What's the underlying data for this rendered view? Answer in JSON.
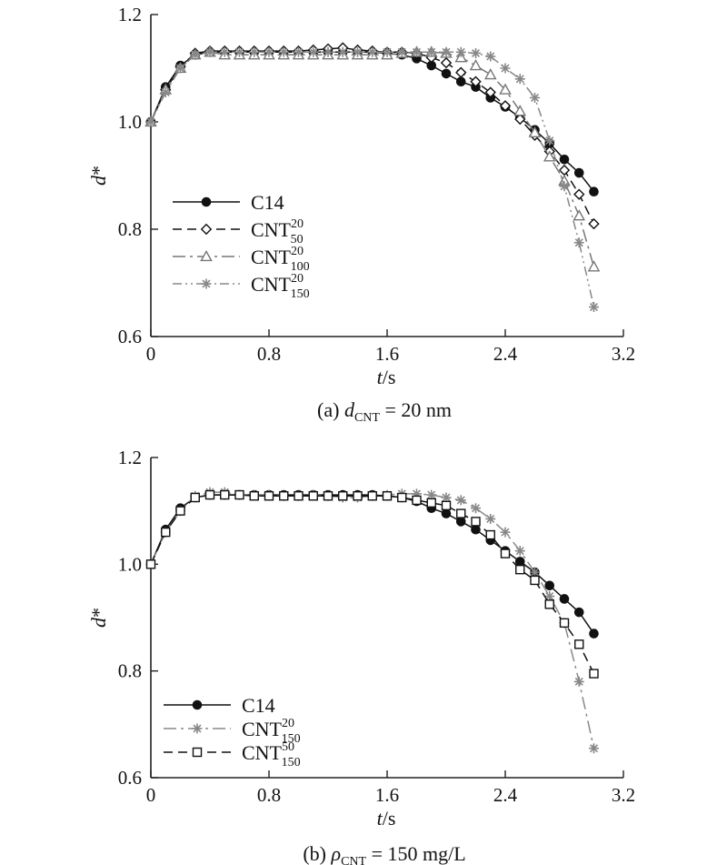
{
  "chart_data": [
    {
      "type": "line",
      "caption": {
        "prefix": "(a) ",
        "var": "d",
        "sub": "CNT",
        "suffix": " = 20 nm"
      },
      "xlabel": {
        "var": "t",
        "unit": "/s"
      },
      "ylabel": {
        "var": "d",
        "sup": "*"
      },
      "xlim": [
        0,
        3.2
      ],
      "ylim": [
        0.6,
        1.2
      ],
      "xticks": [
        "0",
        "0.8",
        "1.6",
        "2.4",
        "3.2"
      ],
      "yticks": [
        "0.6",
        "0.8",
        "1.0",
        "1.2"
      ],
      "legend_position": "lower-left",
      "series": [
        {
          "name": "C14",
          "sup": "",
          "sub": "",
          "color": "#111111",
          "dash": "",
          "marker": "filled-circle",
          "x": [
            0,
            0.1,
            0.2,
            0.3,
            0.4,
            0.5,
            0.6,
            0.7,
            0.8,
            0.9,
            1.0,
            1.1,
            1.2,
            1.3,
            1.4,
            1.5,
            1.6,
            1.7,
            1.8,
            1.9,
            2.0,
            2.1,
            2.2,
            2.3,
            2.4,
            2.5,
            2.6,
            2.7,
            2.8,
            2.9,
            3.0
          ],
          "y": [
            1.0,
            1.065,
            1.105,
            1.125,
            1.13,
            1.13,
            1.13,
            1.13,
            1.13,
            1.13,
            1.13,
            1.13,
            1.13,
            1.13,
            1.13,
            1.13,
            1.128,
            1.125,
            1.118,
            1.105,
            1.09,
            1.075,
            1.065,
            1.045,
            1.028,
            1.008,
            0.985,
            0.96,
            0.93,
            0.905,
            0.87
          ]
        },
        {
          "name": "CNT",
          "sup": "20",
          "sub": "50",
          "color": "#111111",
          "dash": "10,6",
          "marker": "open-diamond",
          "x": [
            0,
            0.1,
            0.2,
            0.3,
            0.4,
            0.5,
            0.6,
            0.7,
            0.8,
            0.9,
            1.0,
            1.1,
            1.2,
            1.3,
            1.4,
            1.5,
            1.6,
            1.7,
            1.8,
            1.9,
            2.0,
            2.1,
            2.2,
            2.3,
            2.4,
            2.5,
            2.6,
            2.7,
            2.8,
            2.9,
            3.0
          ],
          "y": [
            1.0,
            1.06,
            1.103,
            1.128,
            1.132,
            1.132,
            1.132,
            1.132,
            1.132,
            1.132,
            1.132,
            1.134,
            1.136,
            1.138,
            1.134,
            1.132,
            1.13,
            1.13,
            1.128,
            1.12,
            1.11,
            1.092,
            1.075,
            1.055,
            1.03,
            1.005,
            0.975,
            0.945,
            0.91,
            0.865,
            0.81
          ]
        },
        {
          "name": "CNT",
          "sup": "20",
          "sub": "100",
          "color": "#777777",
          "dash": "14,5,3,5",
          "marker": "open-triangle",
          "x": [
            0,
            0.1,
            0.2,
            0.3,
            0.4,
            0.5,
            0.6,
            0.7,
            0.8,
            0.9,
            1.0,
            1.1,
            1.2,
            1.3,
            1.4,
            1.5,
            1.6,
            1.7,
            1.8,
            1.9,
            2.0,
            2.1,
            2.2,
            2.3,
            2.4,
            2.5,
            2.6,
            2.7,
            2.8,
            2.9,
            3.0
          ],
          "y": [
            1.0,
            1.06,
            1.1,
            1.125,
            1.13,
            1.125,
            1.125,
            1.125,
            1.125,
            1.125,
            1.125,
            1.125,
            1.125,
            1.125,
            1.125,
            1.125,
            1.125,
            1.128,
            1.13,
            1.13,
            1.128,
            1.12,
            1.105,
            1.088,
            1.06,
            1.02,
            0.98,
            0.935,
            0.89,
            0.825,
            0.73
          ]
        },
        {
          "name": "CNT",
          "sup": "20",
          "sub": "150",
          "color": "#888888",
          "dash": "10,4,2,4,2,4",
          "marker": "asterisk",
          "x": [
            0,
            0.1,
            0.2,
            0.3,
            0.4,
            0.5,
            0.6,
            0.7,
            0.8,
            0.9,
            1.0,
            1.1,
            1.2,
            1.3,
            1.4,
            1.5,
            1.6,
            1.7,
            1.8,
            1.9,
            2.0,
            2.1,
            2.2,
            2.3,
            2.4,
            2.5,
            2.6,
            2.7,
            2.8,
            2.9,
            3.0
          ],
          "y": [
            1.0,
            1.055,
            1.1,
            1.125,
            1.13,
            1.13,
            1.13,
            1.13,
            1.13,
            1.13,
            1.13,
            1.13,
            1.13,
            1.13,
            1.13,
            1.13,
            1.13,
            1.13,
            1.13,
            1.13,
            1.13,
            1.13,
            1.128,
            1.122,
            1.1,
            1.08,
            1.045,
            0.965,
            0.88,
            0.775,
            0.655
          ]
        }
      ]
    },
    {
      "type": "line",
      "caption": {
        "prefix": "(b) ",
        "var": "ρ",
        "sub": "CNT",
        "suffix": " = 150 mg/L"
      },
      "xlabel": {
        "var": "t",
        "unit": "/s"
      },
      "ylabel": {
        "var": "d",
        "sup": "*"
      },
      "xlim": [
        0,
        3.2
      ],
      "ylim": [
        0.6,
        1.2
      ],
      "xticks": [
        "0",
        "0.8",
        "1.6",
        "2.4",
        "3.2"
      ],
      "yticks": [
        "0.6",
        "0.8",
        "1.0",
        "1.2"
      ],
      "legend_position": "lower-left",
      "series": [
        {
          "name": "C14",
          "sup": "",
          "sub": "",
          "color": "#111111",
          "dash": "",
          "marker": "filled-circle",
          "x": [
            0,
            0.1,
            0.2,
            0.3,
            0.4,
            0.5,
            0.6,
            0.7,
            0.8,
            0.9,
            1.0,
            1.1,
            1.2,
            1.3,
            1.4,
            1.5,
            1.6,
            1.7,
            1.8,
            1.9,
            2.0,
            2.1,
            2.2,
            2.3,
            2.4,
            2.5,
            2.6,
            2.7,
            2.8,
            2.9,
            3.0
          ],
          "y": [
            1.0,
            1.065,
            1.105,
            1.125,
            1.13,
            1.13,
            1.13,
            1.13,
            1.13,
            1.13,
            1.13,
            1.13,
            1.13,
            1.13,
            1.13,
            1.13,
            1.128,
            1.125,
            1.118,
            1.105,
            1.095,
            1.08,
            1.065,
            1.045,
            1.025,
            1.005,
            0.985,
            0.96,
            0.935,
            0.91,
            0.87
          ]
        },
        {
          "name": "CNT",
          "sup": "20",
          "sub": "150",
          "color": "#888888",
          "dash": "14,5,3,5",
          "marker": "asterisk",
          "x": [
            0,
            0.1,
            0.2,
            0.3,
            0.4,
            0.5,
            0.6,
            0.7,
            0.8,
            0.9,
            1.0,
            1.1,
            1.2,
            1.3,
            1.4,
            1.5,
            1.6,
            1.7,
            1.8,
            1.9,
            2.0,
            2.1,
            2.2,
            2.3,
            2.4,
            2.5,
            2.6,
            2.7,
            2.8,
            2.9,
            3.0
          ],
          "y": [
            1.0,
            1.06,
            1.1,
            1.128,
            1.135,
            1.135,
            1.13,
            1.13,
            1.13,
            1.128,
            1.128,
            1.13,
            1.128,
            1.125,
            1.125,
            1.128,
            1.13,
            1.132,
            1.132,
            1.13,
            1.125,
            1.12,
            1.105,
            1.085,
            1.06,
            1.025,
            0.985,
            0.94,
            0.89,
            0.78,
            0.655
          ]
        },
        {
          "name": "CNT",
          "sup": "50",
          "sub": "150",
          "color": "#111111",
          "dash": "10,6",
          "marker": "open-square",
          "x": [
            0,
            0.1,
            0.2,
            0.3,
            0.4,
            0.5,
            0.6,
            0.7,
            0.8,
            0.9,
            1.0,
            1.1,
            1.2,
            1.3,
            1.4,
            1.5,
            1.6,
            1.7,
            1.8,
            1.9,
            2.0,
            2.1,
            2.2,
            2.3,
            2.4,
            2.5,
            2.6,
            2.7,
            2.8,
            2.9,
            3.0
          ],
          "y": [
            1.0,
            1.06,
            1.1,
            1.125,
            1.13,
            1.13,
            1.13,
            1.128,
            1.128,
            1.128,
            1.128,
            1.128,
            1.128,
            1.128,
            1.128,
            1.128,
            1.128,
            1.125,
            1.12,
            1.115,
            1.11,
            1.095,
            1.08,
            1.055,
            1.02,
            0.99,
            0.97,
            0.925,
            0.89,
            0.85,
            0.795
          ]
        }
      ]
    }
  ]
}
